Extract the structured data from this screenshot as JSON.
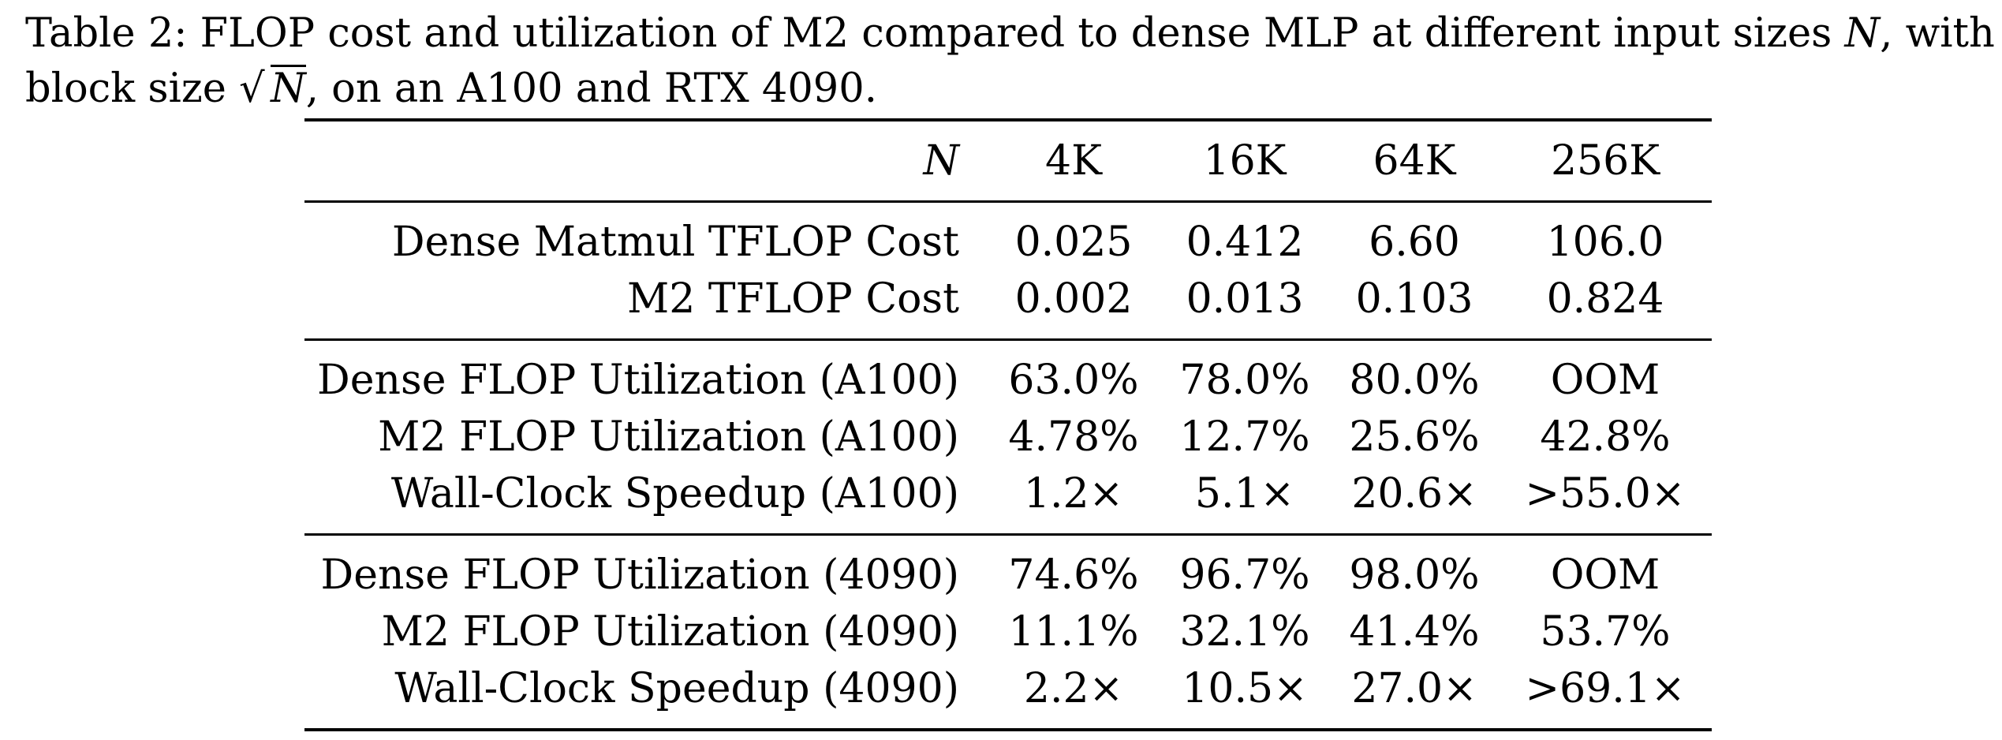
{
  "caption": {
    "lead": "Table 2: FLOP cost and utilization of M2 compared to dense MLP at different input sizes ",
    "var_n": "N",
    "mid": ", with",
    "line2_start": "block size ",
    "radical_symbol": "√",
    "radicand": "N",
    "line2_end": ", on an A100 and RTX 4090."
  },
  "table": {
    "header": {
      "label": "N",
      "columns": [
        "4K",
        "16K",
        "64K",
        "256K"
      ]
    },
    "groups": [
      {
        "rows": [
          {
            "label": "Dense Matmul TFLOP Cost",
            "values": [
              "0.025",
              "0.412",
              "6.60",
              "106.0"
            ]
          },
          {
            "label": "M2 TFLOP Cost",
            "values": [
              "0.002",
              "0.013",
              "0.103",
              "0.824"
            ]
          }
        ]
      },
      {
        "rows": [
          {
            "label": "Dense FLOP Utilization (A100)",
            "values": [
              "63.0%",
              "78.0%",
              "80.0%",
              "OOM"
            ]
          },
          {
            "label": "M2 FLOP Utilization (A100)",
            "values": [
              "4.78%",
              "12.7%",
              "25.6%",
              "42.8%"
            ]
          },
          {
            "label": "Wall-Clock Speedup (A100)",
            "values": [
              "1.2×",
              "5.1×",
              "20.6×",
              ">55.0×"
            ]
          }
        ]
      },
      {
        "rows": [
          {
            "label": "Dense FLOP Utilization (4090)",
            "values": [
              "74.6%",
              "96.7%",
              "98.0%",
              "OOM"
            ]
          },
          {
            "label": "M2 FLOP Utilization (4090)",
            "values": [
              "11.1%",
              "32.1%",
              "41.4%",
              "53.7%"
            ]
          },
          {
            "label": "Wall-Clock Speedup (4090)",
            "values": [
              "2.2×",
              "10.5×",
              "27.0×",
              ">69.1×"
            ]
          }
        ]
      }
    ]
  }
}
